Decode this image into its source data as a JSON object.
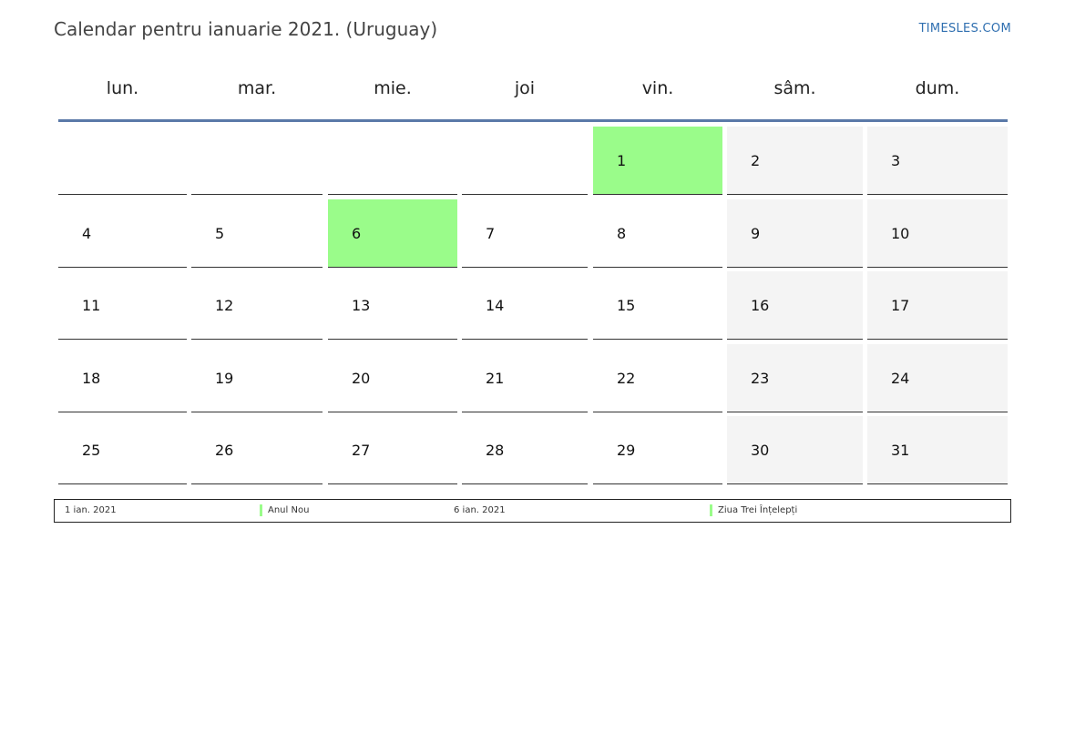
{
  "title": "Calendar pentru ianuarie 2021. (Uruguay)",
  "brand": "TIMESLES.COM",
  "colors": {
    "holiday": "#9afc8a",
    "weekend": "#f4f4f4",
    "header_line": "#5a79a8",
    "brand": "#2f6fb0"
  },
  "weekdays": [
    "lun.",
    "mar.",
    "mie.",
    "joi",
    "vin.",
    "sâm.",
    "dum."
  ],
  "weeks": [
    [
      null,
      null,
      null,
      null,
      1,
      2,
      3
    ],
    [
      4,
      5,
      6,
      7,
      8,
      9,
      10
    ],
    [
      11,
      12,
      13,
      14,
      15,
      16,
      17
    ],
    [
      18,
      19,
      20,
      21,
      22,
      23,
      24
    ],
    [
      25,
      26,
      27,
      28,
      29,
      30,
      31
    ]
  ],
  "holidays": [
    1,
    6
  ],
  "legend": [
    {
      "date": "1 ian. 2021",
      "name": "Anul Nou"
    },
    {
      "date": "6 ian. 2021",
      "name": "Ziua Trei Înțelepți"
    }
  ]
}
